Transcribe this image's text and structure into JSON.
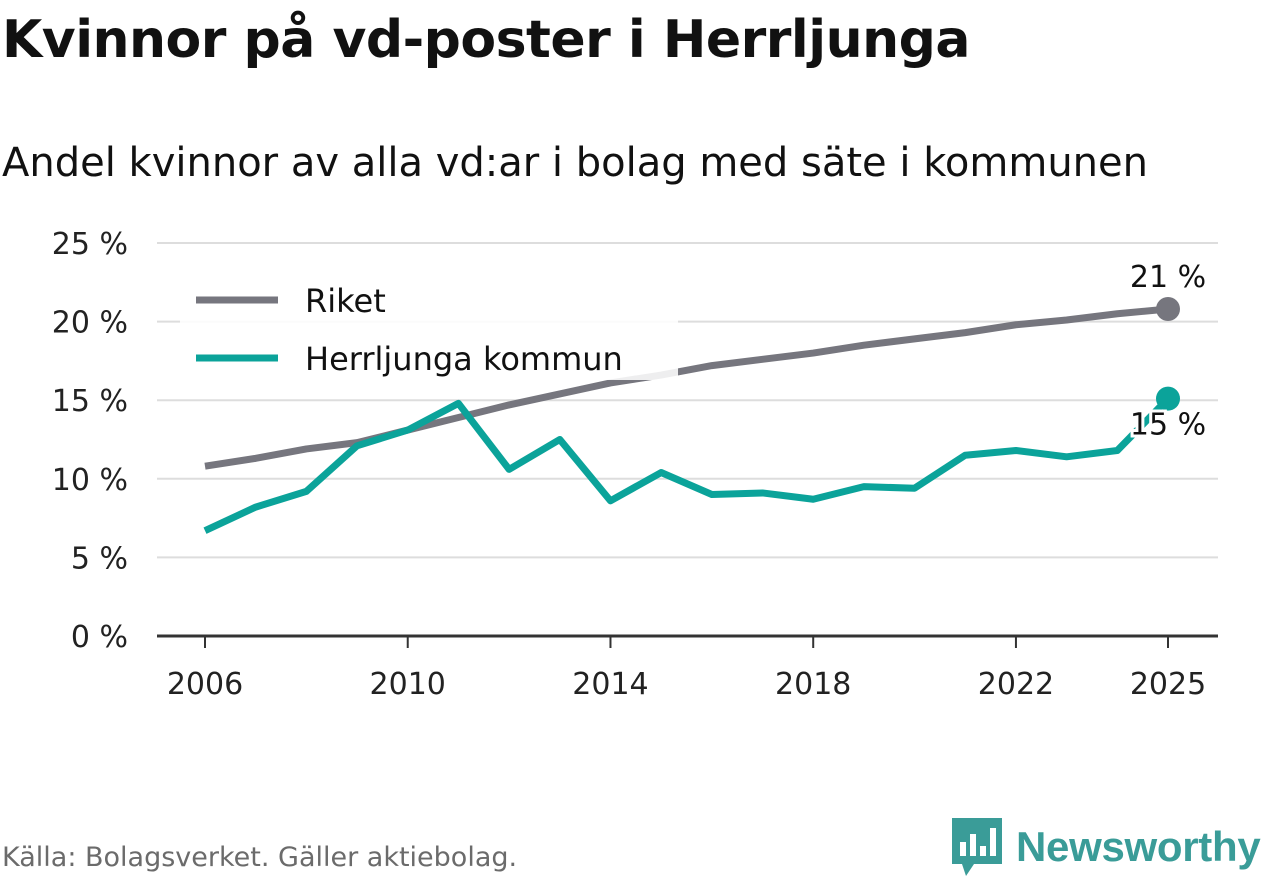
{
  "header": {
    "title": "Kvinnor på vd-poster i Herrljunga",
    "subtitle": "Andel kvinnor av alla vd:ar i bolag med säte i kommunen"
  },
  "footer": {
    "source": "Källa: Bolagsverket. Gäller aktiebolag."
  },
  "brand": {
    "name": "Newsworthy"
  },
  "colors": {
    "riket": "#76767e",
    "herrljunga": "#0ba39a",
    "grid": "#dddddd",
    "axis": "#333333"
  },
  "chart_data": {
    "type": "line",
    "title": "Kvinnor på vd-poster i Herrljunga",
    "subtitle": "Andel kvinnor av alla vd:ar i bolag med säte i kommunen",
    "xlabel": "",
    "ylabel": "",
    "ylim": [
      0,
      25
    ],
    "xlim": [
      2006,
      2025
    ],
    "x": [
      2006,
      2007,
      2008,
      2009,
      2010,
      2011,
      2012,
      2013,
      2014,
      2015,
      2016,
      2017,
      2018,
      2019,
      2020,
      2021,
      2022,
      2023,
      2024,
      2025
    ],
    "x_ticks": [
      2006,
      2010,
      2014,
      2018,
      2022,
      2025
    ],
    "x_tick_labels": [
      "2006",
      "2010",
      "2014",
      "2018",
      "2022",
      "2025"
    ],
    "y_ticks": [
      0,
      5,
      10,
      15,
      20,
      25
    ],
    "y_tick_labels": [
      "0 %",
      "5 %",
      "10 %",
      "15 %",
      "20 %",
      "25 %"
    ],
    "grid": true,
    "legend_position": "top-left",
    "series": [
      {
        "name": "Riket",
        "color": "#76767e",
        "values": [
          10.8,
          11.3,
          11.9,
          12.3,
          13.1,
          13.9,
          14.7,
          15.4,
          16.1,
          16.6,
          17.2,
          17.6,
          18.0,
          18.5,
          18.9,
          19.3,
          19.8,
          20.1,
          20.5,
          20.8
        ],
        "end_label": "21 %"
      },
      {
        "name": "Herrljunga kommun",
        "color": "#0ba39a",
        "values": [
          6.7,
          8.2,
          9.2,
          12.1,
          13.1,
          14.8,
          10.6,
          12.5,
          8.6,
          10.4,
          9.0,
          9.1,
          8.7,
          9.5,
          9.4,
          11.5,
          11.8,
          11.4,
          11.8,
          15.1
        ],
        "end_label": "15 %"
      }
    ]
  }
}
